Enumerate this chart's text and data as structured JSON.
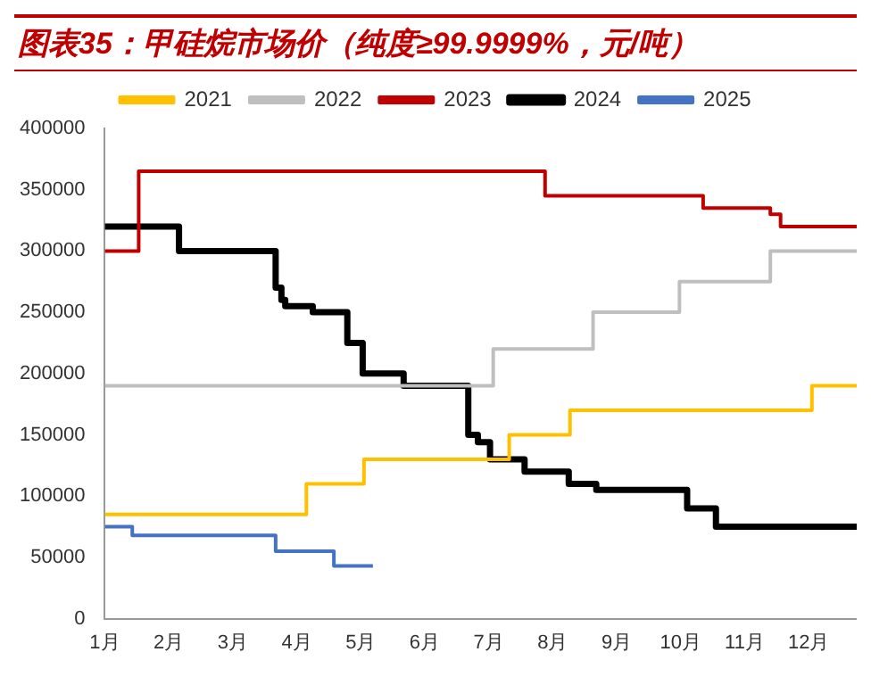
{
  "chart_data": {
    "type": "step",
    "title": "图表35：甲硅烷市场价（纯度≥99.9999%，元/吨）",
    "xlim": [
      1,
      12.75
    ],
    "xticks": [
      {
        "value": 1,
        "label": "1月"
      },
      {
        "value": 2,
        "label": "2月"
      },
      {
        "value": 3,
        "label": "3月"
      },
      {
        "value": 4,
        "label": "4月"
      },
      {
        "value": 5,
        "label": "5月"
      },
      {
        "value": 6,
        "label": "6月"
      },
      {
        "value": 7,
        "label": "7月"
      },
      {
        "value": 8,
        "label": "8月"
      },
      {
        "value": 9,
        "label": "9月"
      },
      {
        "value": 10,
        "label": "10月"
      },
      {
        "value": 11,
        "label": "11月"
      },
      {
        "value": 12,
        "label": "12月"
      }
    ],
    "ylim": [
      0,
      400000
    ],
    "yticks": [
      0,
      50000,
      100000,
      150000,
      200000,
      250000,
      300000,
      350000,
      400000
    ],
    "grid": false,
    "legend": "top",
    "series": [
      {
        "name": "2021",
        "color": "#ffc000",
        "x": [
          1,
          4.15,
          5.05,
          7.32,
          8.27,
          12.05,
          12.75
        ],
        "values": [
          85000,
          110000,
          130000,
          150000,
          170000,
          190000,
          190000
        ]
      },
      {
        "name": "2022",
        "color": "#bfbfbf",
        "x": [
          1,
          7.07,
          8.63,
          9.98,
          11.4,
          12.75
        ],
        "values": [
          190000,
          220000,
          250000,
          275000,
          300000,
          300000
        ]
      },
      {
        "name": "2023",
        "color": "#c00000",
        "x": [
          1,
          1.53,
          7.88,
          10.35,
          11.4,
          11.56,
          12.75
        ],
        "values": [
          300000,
          365000,
          345000,
          335000,
          330000,
          320000,
          320000
        ]
      },
      {
        "name": "2024",
        "color": "#000000",
        "x": [
          1,
          2.16,
          3.67,
          3.76,
          3.82,
          4.25,
          4.79,
          5.03,
          5.67,
          6.68,
          6.83,
          7.02,
          7.56,
          8.25,
          8.68,
          10.1,
          10.55,
          12.75
        ],
        "values": [
          320000,
          300000,
          270000,
          260000,
          255000,
          250000,
          225000,
          200000,
          190000,
          150000,
          144000,
          130000,
          120000,
          110000,
          105000,
          90000,
          75000,
          75000
        ]
      },
      {
        "name": "2025",
        "color": "#4472c4",
        "x": [
          1,
          1.43,
          3.67,
          4.58,
          5.19
        ],
        "values": [
          75000,
          68000,
          55000,
          43000,
          43000
        ]
      }
    ]
  }
}
